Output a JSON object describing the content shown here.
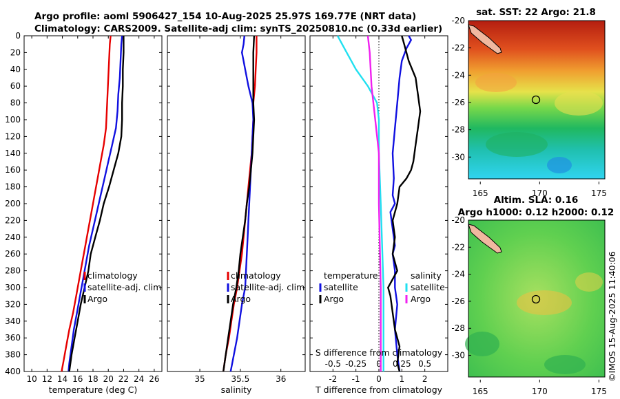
{
  "title": {
    "line1": "Argo profile: aoml 5906427_154 10-Aug-2025 25.97S 169.77E (NRT data)",
    "line2": "Climatology: CARS2009. Satellite-adj clim: synTS_20250810.nc (0.33d earlier)"
  },
  "copyright": "©IMOS 15-Aug-2025 11:40:06",
  "colors": {
    "climatology": "#e60000",
    "satellite": "#1010e0",
    "argo": "#000000",
    "sal_satellite": "#20e0f0",
    "sal_argo": "#f020f0"
  },
  "chart_data": [
    {
      "type": "line",
      "id": "temperature",
      "xlabel": "temperature (deg C)",
      "xlim": [
        9,
        27
      ],
      "xticks": [
        "10",
        "12",
        "14",
        "16",
        "18",
        "20",
        "22",
        "24",
        "26"
      ],
      "ylim": [
        0,
        400
      ],
      "yticks": [
        "0",
        "20",
        "40",
        "60",
        "80",
        "100",
        "120",
        "140",
        "160",
        "180",
        "200",
        "220",
        "240",
        "260",
        "280",
        "300",
        "320",
        "340",
        "360",
        "380",
        "400"
      ],
      "legend": [
        "climatology",
        "satellite-adj. clim",
        "Argo"
      ],
      "series": [
        {
          "name": "climatology",
          "color": "#e60000",
          "points": [
            [
              20.3,
              0
            ],
            [
              20.2,
              10
            ],
            [
              20.1,
              30
            ],
            [
              20.0,
              50
            ],
            [
              19.9,
              70
            ],
            [
              19.8,
              90
            ],
            [
              19.7,
              110
            ],
            [
              19.4,
              130
            ],
            [
              19.0,
              150
            ],
            [
              18.6,
              170
            ],
            [
              18.2,
              190
            ],
            [
              17.8,
              210
            ],
            [
              17.4,
              230
            ],
            [
              17.0,
              250
            ],
            [
              16.6,
              270
            ],
            [
              16.2,
              290
            ],
            [
              15.8,
              310
            ],
            [
              15.4,
              330
            ],
            [
              14.9,
              350
            ],
            [
              14.5,
              370
            ],
            [
              14.1,
              390
            ],
            [
              13.9,
              400
            ]
          ]
        },
        {
          "name": "satellite-adj. clim",
          "color": "#1010e0",
          "points": [
            [
              21.8,
              0
            ],
            [
              21.7,
              10
            ],
            [
              21.6,
              30
            ],
            [
              21.5,
              50
            ],
            [
              21.3,
              70
            ],
            [
              21.2,
              90
            ],
            [
              21.0,
              110
            ],
            [
              20.5,
              130
            ],
            [
              20.0,
              150
            ],
            [
              19.5,
              170
            ],
            [
              19.0,
              190
            ],
            [
              18.5,
              210
            ],
            [
              18.0,
              230
            ],
            [
              17.5,
              250
            ],
            [
              17.1,
              270
            ],
            [
              16.7,
              290
            ],
            [
              16.3,
              310
            ],
            [
              15.9,
              330
            ],
            [
              15.5,
              350
            ],
            [
              15.2,
              370
            ],
            [
              14.9,
              390
            ],
            [
              14.8,
              400
            ]
          ]
        },
        {
          "name": "Argo",
          "color": "#000000",
          "points": [
            [
              22.0,
              0
            ],
            [
              22.0,
              20
            ],
            [
              21.9,
              40
            ],
            [
              21.9,
              60
            ],
            [
              21.8,
              80
            ],
            [
              21.8,
              100
            ],
            [
              21.7,
              120
            ],
            [
              21.3,
              140
            ],
            [
              20.7,
              160
            ],
            [
              20.1,
              180
            ],
            [
              19.4,
              200
            ],
            [
              18.9,
              220
            ],
            [
              18.3,
              240
            ],
            [
              17.7,
              260
            ],
            [
              17.4,
              280
            ],
            [
              16.9,
              300
            ],
            [
              16.4,
              320
            ],
            [
              16.0,
              340
            ],
            [
              15.6,
              360
            ],
            [
              15.2,
              380
            ],
            [
              14.9,
              400
            ]
          ]
        }
      ]
    },
    {
      "type": "line",
      "id": "salinity",
      "xlabel": "salinity",
      "xlim": [
        34.6,
        36.3
      ],
      "xticks": [
        "35",
        "35.5",
        "36"
      ],
      "ylim": [
        0,
        400
      ],
      "legend": [
        "climatology",
        "satellite-adj. clim",
        "Argo"
      ],
      "series": [
        {
          "name": "climatology",
          "color": "#e60000",
          "points": [
            [
              35.7,
              0
            ],
            [
              35.7,
              20
            ],
            [
              35.69,
              40
            ],
            [
              35.68,
              60
            ],
            [
              35.66,
              80
            ],
            [
              35.66,
              100
            ],
            [
              35.65,
              120
            ],
            [
              35.64,
              140
            ],
            [
              35.62,
              160
            ],
            [
              35.6,
              180
            ],
            [
              35.58,
              200
            ],
            [
              35.56,
              220
            ],
            [
              35.54,
              240
            ],
            [
              35.52,
              260
            ],
            [
              35.49,
              280
            ],
            [
              35.46,
              300
            ],
            [
              35.42,
              320
            ],
            [
              35.39,
              340
            ],
            [
              35.36,
              360
            ],
            [
              35.32,
              380
            ],
            [
              35.29,
              400
            ]
          ]
        },
        {
          "name": "satellite-adj. clim",
          "color": "#1010e0",
          "points": [
            [
              35.55,
              0
            ],
            [
              35.54,
              10
            ],
            [
              35.52,
              20
            ],
            [
              35.54,
              30
            ],
            [
              35.56,
              40
            ],
            [
              35.6,
              60
            ],
            [
              35.65,
              80
            ],
            [
              35.66,
              100
            ],
            [
              35.65,
              120
            ],
            [
              35.64,
              140
            ],
            [
              35.63,
              160
            ],
            [
              35.62,
              180
            ],
            [
              35.61,
              200
            ],
            [
              35.6,
              220
            ],
            [
              35.59,
              240
            ],
            [
              35.58,
              260
            ],
            [
              35.57,
              280
            ],
            [
              35.56,
              300
            ],
            [
              35.52,
              320
            ],
            [
              35.49,
              340
            ],
            [
              35.46,
              360
            ],
            [
              35.42,
              380
            ],
            [
              35.38,
              400
            ]
          ]
        },
        {
          "name": "Argo",
          "color": "#000000",
          "points": [
            [
              35.67,
              0
            ],
            [
              35.66,
              20
            ],
            [
              35.66,
              40
            ],
            [
              35.66,
              60
            ],
            [
              35.66,
              80
            ],
            [
              35.67,
              100
            ],
            [
              35.66,
              120
            ],
            [
              35.65,
              140
            ],
            [
              35.63,
              160
            ],
            [
              35.61,
              180
            ],
            [
              35.58,
              200
            ],
            [
              35.56,
              220
            ],
            [
              35.53,
              240
            ],
            [
              35.5,
              260
            ],
            [
              35.48,
              280
            ],
            [
              35.45,
              300
            ],
            [
              35.41,
              320
            ],
            [
              35.38,
              340
            ],
            [
              35.35,
              360
            ],
            [
              35.32,
              380
            ],
            [
              35.29,
              400
            ]
          ]
        }
      ]
    },
    {
      "type": "line",
      "id": "difference",
      "xlabel": "T difference from climatology",
      "xlabel_top": "S difference from climatology",
      "xlim": [
        -3,
        3
      ],
      "xticks": [
        "-2",
        "-1",
        "0",
        "1",
        "2"
      ],
      "xticks_s": [
        "-0.5",
        "-0.25",
        "0",
        "0.25",
        "0.5"
      ],
      "ylim": [
        0,
        400
      ],
      "legend_temperature_title": "temperature",
      "legend_salinity_title": "salinity",
      "legend_temperature": [
        "satellite",
        "Argo"
      ],
      "legend_salinity": [
        "satellite",
        "Argo"
      ],
      "series": [
        {
          "name": "temperature satellite",
          "color": "#1010e0",
          "points": [
            [
              1.3,
              0
            ],
            [
              1.4,
              5
            ],
            [
              1.2,
              15
            ],
            [
              1.0,
              30
            ],
            [
              0.9,
              50
            ],
            [
              0.8,
              80
            ],
            [
              0.7,
              110
            ],
            [
              0.6,
              140
            ],
            [
              0.65,
              170
            ],
            [
              0.6,
              190
            ],
            [
              0.7,
              200
            ],
            [
              0.5,
              210
            ],
            [
              0.6,
              230
            ],
            [
              0.7,
              250
            ],
            [
              0.6,
              260
            ],
            [
              0.7,
              280
            ],
            [
              0.7,
              300
            ],
            [
              0.8,
              320
            ],
            [
              0.7,
              350
            ],
            [
              0.8,
              380
            ],
            [
              0.9,
              400
            ]
          ]
        },
        {
          "name": "temperature Argo",
          "color": "#000000",
          "points": [
            [
              1.0,
              0
            ],
            [
              1.1,
              10
            ],
            [
              1.3,
              30
            ],
            [
              1.6,
              50
            ],
            [
              1.7,
              70
            ],
            [
              1.8,
              90
            ],
            [
              1.7,
              110
            ],
            [
              1.6,
              130
            ],
            [
              1.5,
              150
            ],
            [
              1.4,
              160
            ],
            [
              1.2,
              170
            ],
            [
              0.9,
              180
            ],
            [
              0.8,
              200
            ],
            [
              0.6,
              220
            ],
            [
              0.7,
              240
            ],
            [
              0.6,
              260
            ],
            [
              0.8,
              280
            ],
            [
              0.4,
              300
            ],
            [
              0.5,
              310
            ],
            [
              0.6,
              330
            ],
            [
              0.7,
              350
            ],
            [
              0.9,
              370
            ],
            [
              0.8,
              390
            ],
            [
              0.9,
              400
            ]
          ]
        },
        {
          "name": "salinity satellite",
          "color": "#20e0f0",
          "points": [
            [
              -0.45,
              0
            ],
            [
              -0.35,
              20
            ],
            [
              -0.25,
              40
            ],
            [
              -0.12,
              60
            ],
            [
              -0.02,
              80
            ],
            [
              0.0,
              100
            ],
            [
              0.0,
              140
            ],
            [
              0.02,
              200
            ],
            [
              0.05,
              300
            ],
            [
              0.05,
              400
            ]
          ]
        },
        {
          "name": "salinity Argo",
          "color": "#f020f0",
          "points": [
            [
              -0.12,
              0
            ],
            [
              -0.1,
              20
            ],
            [
              -0.08,
              60
            ],
            [
              -0.04,
              100
            ],
            [
              0.0,
              140
            ],
            [
              0.0,
              200
            ],
            [
              0.02,
              300
            ],
            [
              0.02,
              400
            ]
          ]
        }
      ]
    }
  ],
  "map_sst": {
    "title": "sat. SST: 22 Argo: 21.8",
    "xticks": [
      "165",
      "170",
      "175"
    ],
    "yticks": [
      "-20",
      "-22",
      "-24",
      "-26",
      "-28",
      "-30"
    ]
  },
  "map_sla": {
    "title1": "Altim. SLA: 0.16",
    "title2": "Argo h1000: 0.12 h2000: 0.12",
    "xticks": [
      "165",
      "170",
      "175"
    ],
    "yticks": [
      "-20",
      "-22",
      "-24",
      "-26",
      "-28",
      "-30"
    ]
  }
}
